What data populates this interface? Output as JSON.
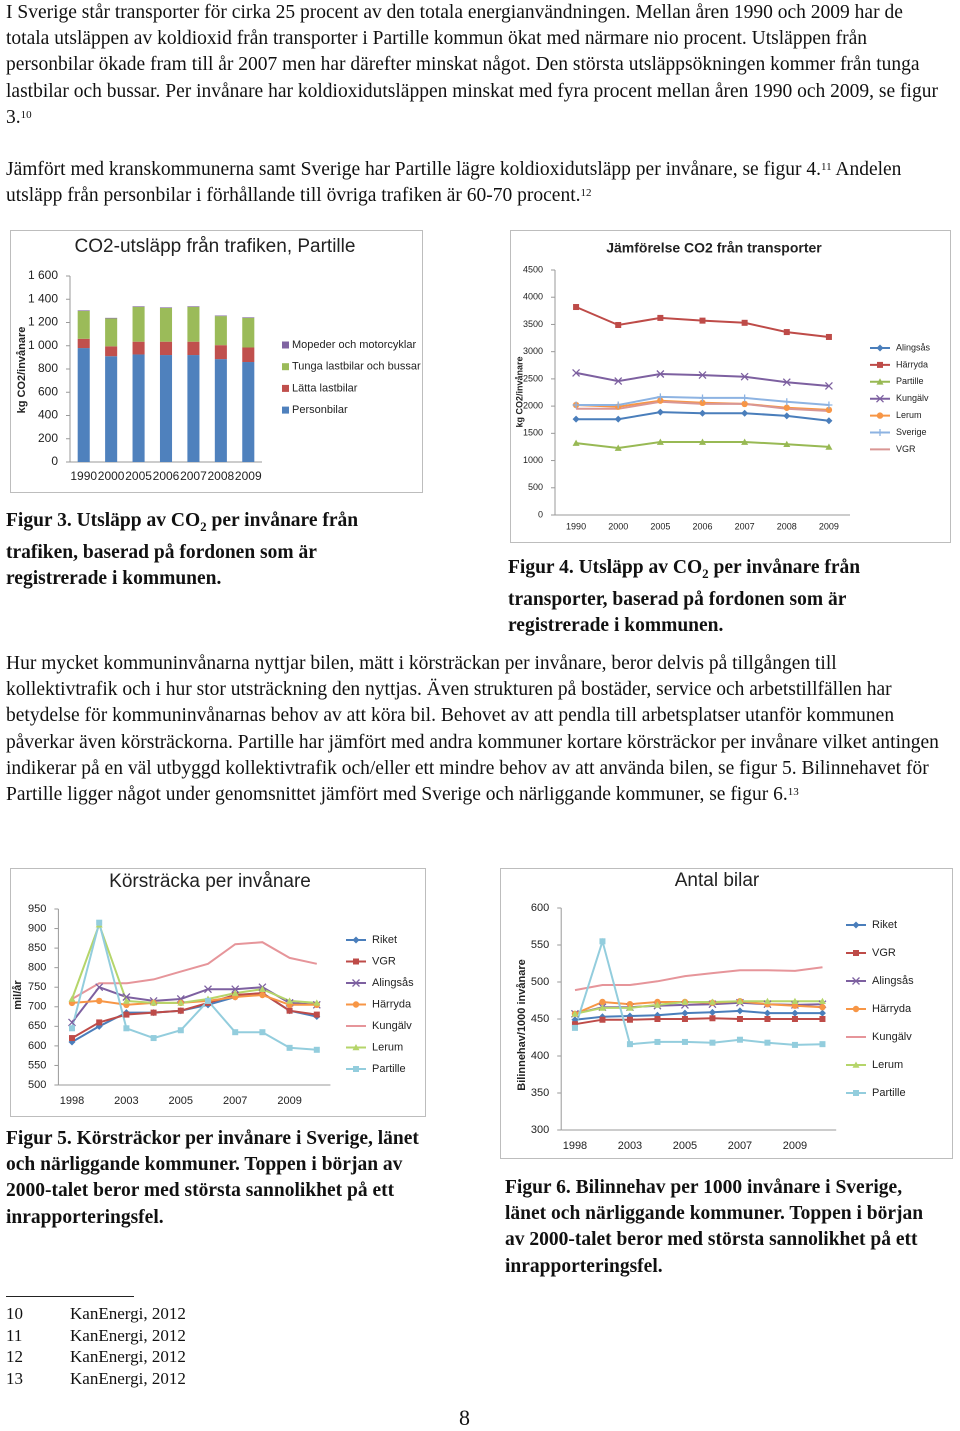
{
  "paragraphs": [
    {
      "parts": [
        {
          "text": "I Sverige står transporter för cirka 25 procent av den totala energianvändningen. Mellan åren 1990 och 2009 har de totala utsläppen av koldioxid från transporter i Partille kommun ökat med närmare nio procent. Utsläppen från personbilar ökade fram till år 2007 men har därefter minskat något. Den största utsläppsökningen kommer från tunga lastbilar och bussar. Per invånare har koldioxidutsläppen minskat med fyra procent mellan åren 1990 och 2009, se figur 3.",
          "ref": "10"
        }
      ]
    },
    {
      "parts": [
        {
          "text": "Jämfört med kranskommunerna samt Sverige har Partille lägre koldioxidutsläpp per invånare, se figur 4.",
          "ref": "11"
        },
        {
          "text": " Andelen utsläpp från personbilar i förhållande till övriga trafiken är 60-70 procent.",
          "ref": "12"
        }
      ]
    },
    {
      "parts": [
        {
          "text": "Hur mycket kommuninvånarna nyttjar bilen, mätt i körsträckan per invånare, beror delvis på tillgången till kollektivtrafik och i hur stor utsträckning den nyttjas. Även strukturen på bostäder, service och arbetstillfällen har betydelse för kommuninvånarnas behov av att köra bil. Behovet av att pendla till arbetsplatser utanför kommunen påverkar även körsträckorna. Partille har jämfört med andra kommuner kortare körsträckor per invånare vilket antingen indikerar på en väl utbyggd kollektivtrafik och/eller ett mindre behov av att använda bilen, se figur 5. Bilinnehavet för Partille ligger något under genomsnittet jämfört med Sverige och närliggande kommuner, se figur 6.",
          "ref": "13"
        }
      ]
    }
  ],
  "captions": [
    {
      "before": "Figur 3. Utsläpp av CO",
      "sub": "2",
      "after": " per invånare från trafiken, baserad på fordonen som är registrerade i kommunen."
    },
    {
      "before": "Figur 4. Utsläpp av CO",
      "sub": "2",
      "after": " per invånare från transporter, baserad på fordonen som är registrerade i kommunen."
    },
    {
      "text": "Figur 5. Körsträckor per invånare i Sverige, länet och närliggande kommuner. Toppen i början av 2000-talet beror med största sannolikhet på ett inrapporteringsfel."
    },
    {
      "text": "Figur 6. Bilinnehav per 1000 invånare i Sverige, länet och närliggande kommuner. Toppen i början av 2000-talet beror med största sannolikhet på ett inrapporteringsfel."
    }
  ],
  "chart_data": [
    {
      "type": "bar",
      "title": "CO2-utsläpp från trafiken, Partille",
      "y_label": "kg CO2/invånare",
      "categories": [
        "1990",
        "2000",
        "2005",
        "2006",
        "2007",
        "2008",
        "2009"
      ],
      "ylim": [
        0,
        1600
      ],
      "yticks": [
        0,
        200,
        400,
        600,
        800,
        {
          "value": 1000,
          "label": "1 000"
        },
        {
          "value": 1200,
          "label": "1 200"
        },
        {
          "value": 1400,
          "label": "1 400"
        },
        {
          "value": 1600,
          "label": "1 600"
        }
      ],
      "legend": "right",
      "grid": false,
      "series": [
        {
          "name": "Personbilar",
          "color": "#4f81bd",
          "values": [
            980,
            910,
            925,
            920,
            920,
            885,
            860
          ]
        },
        {
          "name": "Lätta lastbilar",
          "color": "#c0504d",
          "values": [
            80,
            85,
            110,
            115,
            115,
            120,
            125
          ]
        },
        {
          "name": "Tunga lastbilar och bussar",
          "color": "#9bbb59",
          "values": [
            240,
            240,
            300,
            290,
            300,
            250,
            255
          ]
        },
        {
          "name": "Mopeder och motorcyklar",
          "color": "#8064a2",
          "values": [
            5,
            5,
            5,
            5,
            5,
            5,
            5
          ]
        }
      ]
    },
    {
      "type": "line",
      "title": "Jämförelse CO2 från transporter",
      "y_label": "kg CO2/invånare",
      "categories": [
        "1990",
        "2000",
        "2005",
        "2006",
        "2007",
        "2008",
        "2009"
      ],
      "ylim": [
        0,
        4500
      ],
      "yticks": [
        0,
        500,
        1000,
        1500,
        2000,
        2500,
        3000,
        3500,
        4000,
        4500
      ],
      "legend": "right",
      "grid": false,
      "series": [
        {
          "name": "Alingsås",
          "color": "#4a7ebb",
          "marker": "diamond",
          "values": [
            1760,
            1760,
            1890,
            1870,
            1870,
            1820,
            1730
          ]
        },
        {
          "name": "Härryda",
          "color": "#be4b48",
          "marker": "square",
          "values": [
            3820,
            3490,
            3620,
            3570,
            3530,
            3360,
            3270
          ]
        },
        {
          "name": "Partille",
          "color": "#98b954",
          "marker": "triangle",
          "values": [
            1320,
            1230,
            1340,
            1340,
            1340,
            1300,
            1250
          ]
        },
        {
          "name": "Kungälv",
          "color": "#7d60a0",
          "marker": "x",
          "values": [
            2610,
            2460,
            2590,
            2570,
            2540,
            2440,
            2370
          ]
        },
        {
          "name": "Lerum",
          "color": "#f79646",
          "marker": "circle",
          "values": [
            2020,
            1990,
            2100,
            2060,
            2040,
            1970,
            1930
          ]
        },
        {
          "name": "Sverige",
          "color": "#8db3e2",
          "marker": "plus",
          "values": [
            2020,
            2020,
            2170,
            2150,
            2150,
            2080,
            2020
          ]
        },
        {
          "name": "VGR",
          "color": "#d99694",
          "marker": "none",
          "values": [
            1950,
            1950,
            2080,
            2040,
            2040,
            1950,
            1910
          ]
        }
      ]
    },
    {
      "type": "line",
      "title": "Körsträcka per invånare",
      "y_label": "mil/år",
      "categories": [
        "1998",
        null,
        "2003",
        null,
        "2005",
        null,
        "2007",
        null,
        "2009",
        null
      ],
      "ylim": [
        500,
        950
      ],
      "yticks": [
        500,
        550,
        600,
        650,
        700,
        750,
        800,
        850,
        900,
        950
      ],
      "legend": "right",
      "grid": false,
      "series": [
        {
          "name": "Riket",
          "color": "#4a7ebb",
          "marker": "diamond",
          "values": [
            610,
            650,
            685,
            685,
            690,
            705,
            725,
            735,
            690,
            675
          ]
        },
        {
          "name": "VGR",
          "color": "#be4b48",
          "marker": "square",
          "values": [
            620,
            660,
            680,
            685,
            690,
            710,
            730,
            735,
            690,
            680
          ]
        },
        {
          "name": "Alingsås",
          "color": "#7d60a0",
          "marker": "x",
          "values": [
            660,
            750,
            725,
            715,
            720,
            745,
            745,
            750,
            710,
            705
          ]
        },
        {
          "name": "Härryda",
          "color": "#f79646",
          "marker": "circle",
          "values": [
            710,
            715,
            705,
            710,
            710,
            715,
            725,
            730,
            705,
            705
          ]
        },
        {
          "name": "Kungälv",
          "color": "#e6959a",
          "marker": "none",
          "values": [
            720,
            760,
            760,
            770,
            790,
            810,
            860,
            865,
            825,
            810
          ]
        },
        {
          "name": "Lerum",
          "color": "#b5d56a",
          "marker": "triangle",
          "values": [
            720,
            910,
            715,
            710,
            710,
            720,
            735,
            745,
            715,
            710
          ]
        },
        {
          "name": "Partille",
          "color": "#93cddd",
          "marker": "square",
          "values": [
            645,
            915,
            645,
            620,
            640,
            715,
            635,
            635,
            595,
            590
          ]
        }
      ]
    },
    {
      "type": "line",
      "title": "Antal bilar",
      "y_label": "Bilinnehav/1000 invånare",
      "categories": [
        "1998",
        null,
        "2003",
        null,
        "2005",
        null,
        "2007",
        null,
        "2009",
        null
      ],
      "ylim": [
        300,
        600
      ],
      "yticks": [
        300,
        350,
        400,
        450,
        500,
        550,
        600
      ],
      "legend": "right",
      "grid": false,
      "series": [
        {
          "name": "Riket",
          "color": "#4a7ebb",
          "marker": "diamond",
          "values": [
            449,
            453,
            454,
            455,
            458,
            459,
            461,
            458,
            458,
            458
          ]
        },
        {
          "name": "VGR",
          "color": "#be4b48",
          "marker": "square",
          "values": [
            443,
            449,
            449,
            450,
            450,
            451,
            450,
            450,
            450,
            450
          ]
        },
        {
          "name": "Alingsås",
          "color": "#7d60a0",
          "marker": "x",
          "values": [
            457,
            466,
            466,
            468,
            469,
            470,
            472,
            470,
            469,
            470
          ]
        },
        {
          "name": "Härryda",
          "color": "#f79646",
          "marker": "circle",
          "values": [
            457,
            473,
            470,
            473,
            473,
            472,
            474,
            470,
            468,
            466
          ]
        },
        {
          "name": "Kungälv",
          "color": "#e6959a",
          "marker": "none",
          "values": [
            489,
            496,
            496,
            501,
            508,
            512,
            516,
            516,
            515,
            520
          ]
        },
        {
          "name": "Lerum",
          "color": "#b5d56a",
          "marker": "triangle",
          "values": [
            457,
            465,
            465,
            469,
            473,
            473,
            474,
            474,
            474,
            474
          ]
        },
        {
          "name": "Partille",
          "color": "#93cddd",
          "marker": "square",
          "values": [
            438,
            555,
            416,
            419,
            419,
            418,
            422,
            418,
            415,
            416
          ]
        }
      ]
    }
  ],
  "footnotes": [
    {
      "number": "10",
      "source": "KanEnergi, 2012"
    },
    {
      "number": "11",
      "source": "KanEnergi, 2012"
    },
    {
      "number": "12",
      "source": "KanEnergi, 2012"
    },
    {
      "number": "13",
      "source": "KanEnergi, 2012"
    }
  ],
  "page_number": "8"
}
